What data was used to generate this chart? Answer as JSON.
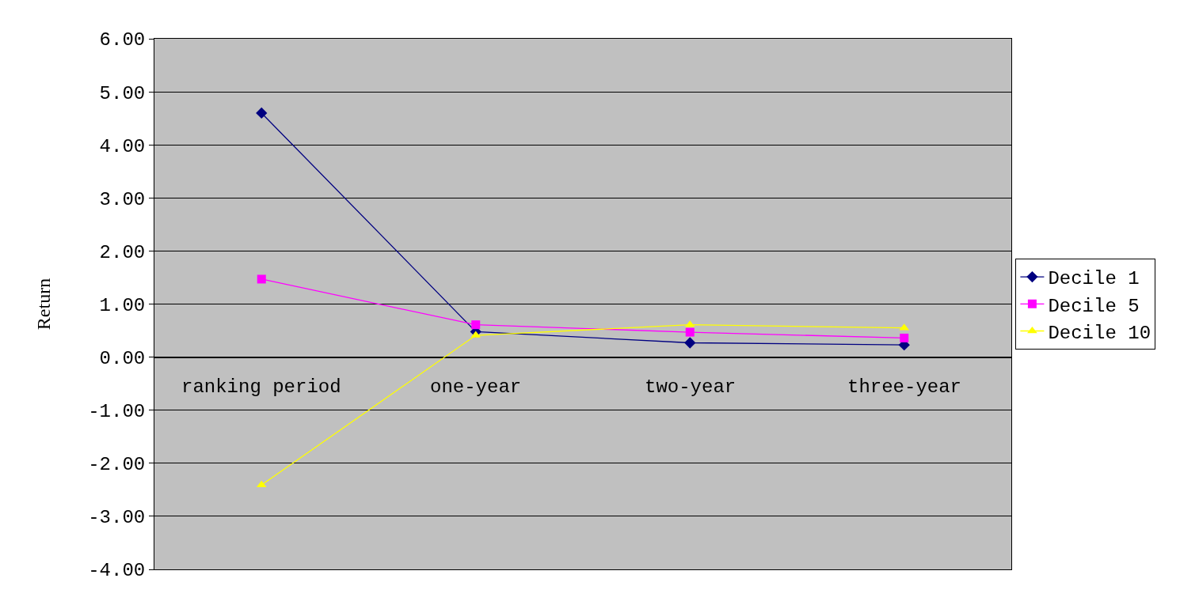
{
  "chart_data": {
    "type": "line",
    "ylabel": "Return",
    "categories": [
      "ranking period",
      "one-year",
      "two-year",
      "three-year"
    ],
    "series": [
      {
        "name": "Decile 1",
        "color": "#000080",
        "marker": "diamond",
        "values": [
          4.6,
          0.48,
          0.27,
          0.23
        ]
      },
      {
        "name": "Decile 5",
        "color": "#ff00ff",
        "marker": "square",
        "values": [
          1.47,
          0.61,
          0.47,
          0.36
        ]
      },
      {
        "name": "Decile 10",
        "color": "#ffff00",
        "marker": "triangle",
        "values": [
          -2.41,
          0.41,
          0.61,
          0.55
        ]
      }
    ],
    "ylim": [
      -4,
      6
    ],
    "yticks": [
      {
        "value": -4,
        "label": "-4.00"
      },
      {
        "value": -3,
        "label": "-3.00"
      },
      {
        "value": -2,
        "label": "-2.00"
      },
      {
        "value": -1,
        "label": "-1.00"
      },
      {
        "value": 0,
        "label": "0.00"
      },
      {
        "value": 1,
        "label": "1.00"
      },
      {
        "value": 2,
        "label": "2.00"
      },
      {
        "value": 3,
        "label": "3.00"
      },
      {
        "value": 4,
        "label": "4.00"
      },
      {
        "value": 5,
        "label": "5.00"
      },
      {
        "value": 6,
        "label": "6.00"
      }
    ],
    "grid": "y",
    "legend": "right"
  }
}
